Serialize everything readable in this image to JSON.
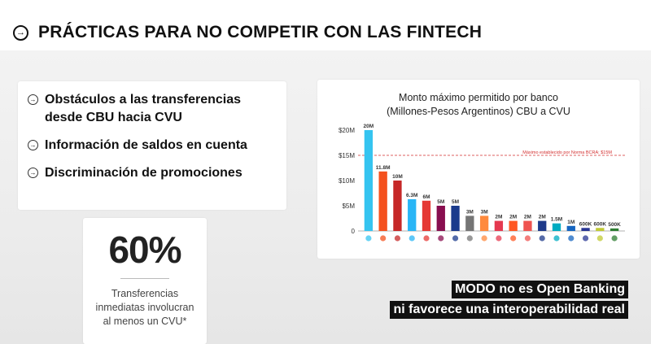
{
  "header": {
    "title": "PRÁCTICAS PARA NO COMPETIR CON LAS FINTECH",
    "icon": "arrow-right-circle-icon"
  },
  "practices": [
    "Obstáculos a las transferencias desde CBU hacia CVU",
    "Información de saldos en cuenta",
    "Discriminación de promociones"
  ],
  "stat": {
    "value": "60%",
    "description": "Transferencias inmediatas involucran al menos un CVU*"
  },
  "caption": {
    "line1": "MODO no es Open Banking",
    "line2": "ni favorece una interoperabilidad real"
  },
  "chart_data": {
    "type": "bar",
    "title_line1": "Monto máximo permitido por banco",
    "title_line2": "(Millones-Pesos Argentinos) CBU a CVU",
    "ylim": [
      0,
      20
    ],
    "y_ticks": [
      0,
      5,
      10,
      15,
      20
    ],
    "y_tick_labels": [
      "0",
      "$5M",
      "$10M",
      "$15M",
      "$20M"
    ],
    "reference_line": {
      "value": 15,
      "label": "Máximo establecido por Norma BCRA: $15M",
      "color": "#d32f2f"
    },
    "values": [
      20,
      11.8,
      10,
      6.3,
      6,
      5,
      5,
      3,
      3,
      2,
      2,
      2,
      2,
      1.5,
      1,
      0.6,
      0.6,
      0.5
    ],
    "value_labels": [
      "20M",
      "11.8M",
      "10M",
      "6.3M",
      "6M",
      "5M",
      "5M",
      "3M",
      "3M",
      "2M",
      "2M",
      "2M",
      "2M",
      "1.5M",
      "1M",
      "600K",
      "600K",
      "500K"
    ],
    "colors": [
      "#35c4f0",
      "#f4511e",
      "#c62828",
      "#29b6f6",
      "#e53935",
      "#880e4f",
      "#1a3a8c",
      "#757575",
      "#ff8a3d",
      "#e53950",
      "#ff5722",
      "#ef5350",
      "#1e3a8a",
      "#00acc1",
      "#1565c0",
      "#283593",
      "#c0ca33",
      "#2e7d32"
    ]
  }
}
